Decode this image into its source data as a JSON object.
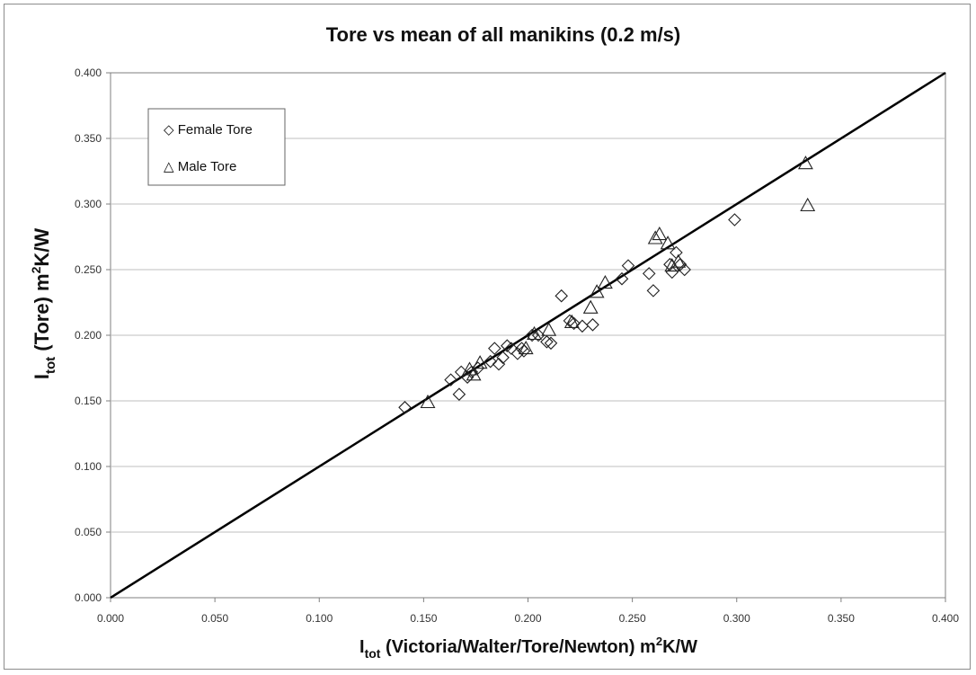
{
  "chart_data": {
    "type": "scatter",
    "title": "Tore vs mean of all manikins (0.2 m/s)",
    "xlabel": {
      "main": "I",
      "sub": "tot",
      "rest": " (Victoria/Walter/Tore/Newton)  m",
      "sup": "2",
      "tail": "K/W"
    },
    "ylabel": {
      "main": "I",
      "sub": "tot",
      "rest": " (Tore)  m",
      "sup": "2",
      "tail": "K/W"
    },
    "xlim": [
      0,
      0.4
    ],
    "ylim": [
      0,
      0.4
    ],
    "xticks": [
      "0.000",
      "0.050",
      "0.100",
      "0.150",
      "0.200",
      "0.250",
      "0.300",
      "0.350",
      "0.400"
    ],
    "yticks": [
      "0.000",
      "0.050",
      "0.100",
      "0.150",
      "0.200",
      "0.250",
      "0.300",
      "0.350",
      "0.400"
    ],
    "grid": "horizontal",
    "legend_position": "top-left",
    "reference_line": {
      "x": [
        0,
        0.4
      ],
      "y": [
        0,
        0.4
      ]
    },
    "series": [
      {
        "name": "Female Tore",
        "marker": "diamond",
        "legend_symbol": "◇",
        "points": [
          [
            0.141,
            0.145
          ],
          [
            0.163,
            0.166
          ],
          [
            0.167,
            0.155
          ],
          [
            0.168,
            0.172
          ],
          [
            0.171,
            0.168
          ],
          [
            0.173,
            0.172
          ],
          [
            0.176,
            0.175
          ],
          [
            0.182,
            0.18
          ],
          [
            0.184,
            0.19
          ],
          [
            0.186,
            0.178
          ],
          [
            0.188,
            0.183
          ],
          [
            0.19,
            0.192
          ],
          [
            0.192,
            0.19
          ],
          [
            0.195,
            0.186
          ],
          [
            0.197,
            0.19
          ],
          [
            0.198,
            0.188
          ],
          [
            0.202,
            0.2
          ],
          [
            0.205,
            0.2
          ],
          [
            0.209,
            0.195
          ],
          [
            0.211,
            0.194
          ],
          [
            0.216,
            0.23
          ],
          [
            0.22,
            0.211
          ],
          [
            0.222,
            0.209
          ],
          [
            0.226,
            0.207
          ],
          [
            0.231,
            0.208
          ],
          [
            0.245,
            0.243
          ],
          [
            0.248,
            0.253
          ],
          [
            0.258,
            0.247
          ],
          [
            0.26,
            0.234
          ],
          [
            0.268,
            0.254
          ],
          [
            0.269,
            0.248
          ],
          [
            0.271,
            0.263
          ],
          [
            0.273,
            0.254
          ],
          [
            0.275,
            0.25
          ],
          [
            0.299,
            0.288
          ]
        ]
      },
      {
        "name": "Male Tore",
        "marker": "triangle",
        "legend_symbol": "△",
        "points": [
          [
            0.152,
            0.149
          ],
          [
            0.172,
            0.174
          ],
          [
            0.174,
            0.17
          ],
          [
            0.177,
            0.179
          ],
          [
            0.199,
            0.19
          ],
          [
            0.203,
            0.201
          ],
          [
            0.21,
            0.204
          ],
          [
            0.221,
            0.21
          ],
          [
            0.23,
            0.221
          ],
          [
            0.233,
            0.233
          ],
          [
            0.237,
            0.24
          ],
          [
            0.261,
            0.274
          ],
          [
            0.263,
            0.277
          ],
          [
            0.267,
            0.27
          ],
          [
            0.269,
            0.253
          ],
          [
            0.272,
            0.256
          ],
          [
            0.333,
            0.331
          ],
          [
            0.334,
            0.299
          ]
        ]
      }
    ]
  }
}
